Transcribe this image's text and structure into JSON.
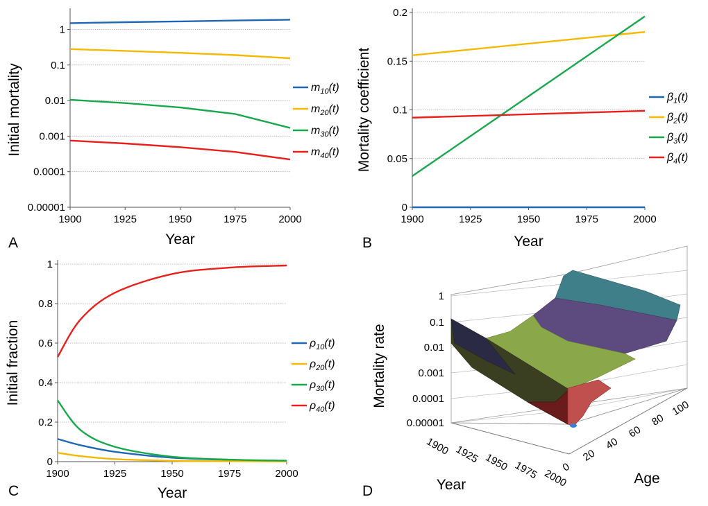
{
  "chart_data": [
    {
      "panel": "A",
      "type": "line",
      "xlabel": "Year",
      "ylabel": "Initial mortality",
      "yscale": "log",
      "xlim": [
        1900,
        2000
      ],
      "ylim": [
        1e-05,
        3
      ],
      "xticks": [
        "1900",
        "1925",
        "1950",
        "1975",
        "2000"
      ],
      "yticks": [
        "0.00001",
        "0.0001",
        "0.001",
        "0.01",
        "0.1",
        "1"
      ],
      "legend_position": "right",
      "series": [
        {
          "name": "m",
          "sub": "10",
          "arg": "(t)",
          "color": "#1f66b5",
          "x": [
            1900,
            1925,
            1950,
            1975,
            2000
          ],
          "y": [
            1.5,
            1.6,
            1.68,
            1.78,
            1.88
          ]
        },
        {
          "name": "m",
          "sub": "20",
          "arg": "(t)",
          "color": "#f5b800",
          "x": [
            1900,
            1925,
            1950,
            1975,
            2000
          ],
          "y": [
            0.28,
            0.25,
            0.22,
            0.19,
            0.155
          ]
        },
        {
          "name": "m",
          "sub": "30",
          "arg": "(t)",
          "color": "#18a84c",
          "x": [
            1900,
            1925,
            1950,
            1975,
            2000
          ],
          "y": [
            0.0105,
            0.0085,
            0.0064,
            0.0042,
            0.0017
          ]
        },
        {
          "name": "m",
          "sub": "40",
          "arg": "(t)",
          "color": "#e8201c",
          "x": [
            1900,
            1925,
            1950,
            1975,
            2000
          ],
          "y": [
            0.00075,
            0.00062,
            0.00049,
            0.00036,
            0.00022
          ]
        }
      ]
    },
    {
      "panel": "B",
      "type": "line",
      "xlabel": "Year",
      "ylabel": "Mortality coefficient",
      "xlim": [
        1900,
        2000
      ],
      "ylim": [
        0,
        0.2
      ],
      "xticks": [
        "1900",
        "1925",
        "1950",
        "1975",
        "2000"
      ],
      "yticks": [
        "0",
        "0.05",
        "0.1",
        "0.15",
        "0.2"
      ],
      "legend_position": "right",
      "series": [
        {
          "name": "β",
          "sub": "1",
          "arg": "(t)",
          "color": "#1f66b5",
          "x": [
            1900,
            2000
          ],
          "y": [
            0,
            0
          ]
        },
        {
          "name": "β",
          "sub": "2",
          "arg": "(t)",
          "color": "#f5b800",
          "x": [
            1900,
            2000
          ],
          "y": [
            0.156,
            0.18
          ]
        },
        {
          "name": "β",
          "sub": "3",
          "arg": "(t)",
          "color": "#18a84c",
          "x": [
            1900,
            2000
          ],
          "y": [
            0.032,
            0.196
          ]
        },
        {
          "name": "β",
          "sub": "4",
          "arg": "(t)",
          "color": "#e8201c",
          "x": [
            1900,
            2000
          ],
          "y": [
            0.092,
            0.099
          ]
        }
      ]
    },
    {
      "panel": "C",
      "type": "line",
      "xlabel": "Year",
      "ylabel": "Initial fraction",
      "xlim": [
        1900,
        2000
      ],
      "ylim": [
        0,
        1
      ],
      "xticks": [
        "1900",
        "1925",
        "1950",
        "1975",
        "2000"
      ],
      "yticks": [
        "0",
        "0.2",
        "0.4",
        "0.6",
        "0.8",
        "1"
      ],
      "legend_position": "right",
      "series": [
        {
          "name": "ρ",
          "sub": "10",
          "arg": "(t)",
          "color": "#1f66b5",
          "x": [
            1900,
            1910,
            1925,
            1950,
            1975,
            2000
          ],
          "y": [
            0.115,
            0.083,
            0.05,
            0.02,
            0.009,
            0.004
          ]
        },
        {
          "name": "ρ",
          "sub": "20",
          "arg": "(t)",
          "color": "#f5b800",
          "x": [
            1900,
            1910,
            1925,
            1950,
            1975,
            2000
          ],
          "y": [
            0.045,
            0.028,
            0.013,
            0.004,
            0.002,
            0.001
          ]
        },
        {
          "name": "ρ",
          "sub": "30",
          "arg": "(t)",
          "color": "#18a84c",
          "x": [
            1900,
            1910,
            1925,
            1950,
            1975,
            2000
          ],
          "y": [
            0.31,
            0.16,
            0.075,
            0.025,
            0.01,
            0.005
          ]
        },
        {
          "name": "ρ",
          "sub": "40",
          "arg": "(t)",
          "color": "#e8201c",
          "x": [
            1900,
            1910,
            1925,
            1950,
            1975,
            2000
          ],
          "y": [
            0.53,
            0.72,
            0.855,
            0.95,
            0.982,
            0.993
          ]
        }
      ]
    },
    {
      "panel": "D",
      "type": "surface",
      "xlabel": "Year",
      "ylabel": "Age",
      "zlabel": "Mortality rate",
      "zscale": "log",
      "year_ticks": [
        "1900",
        "1925",
        "1950",
        "1975",
        "2000"
      ],
      "age_ticks": [
        "0",
        "20",
        "40",
        "60",
        "80",
        "100"
      ],
      "z_ticks": [
        "0.00001",
        "0.0001",
        "0.001",
        "0.01",
        "0.1",
        "1"
      ],
      "band_colors": [
        "#8b1d1d",
        "#3a3d1e",
        "#8aa84a",
        "#5d4a7e",
        "#3e7f8a"
      ]
    }
  ]
}
